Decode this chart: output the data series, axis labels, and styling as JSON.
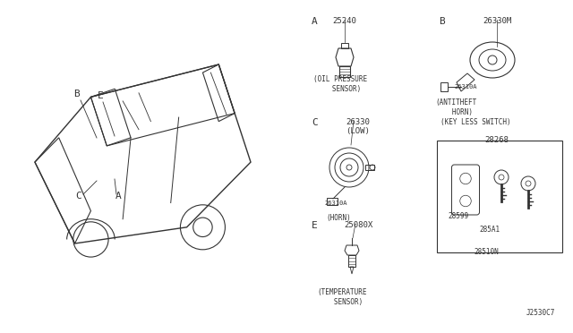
{
  "bg_color": "#ffffff",
  "line_color": "#333333",
  "title_code": "J2530C7",
  "section_A_label": "A",
  "section_B_label": "B",
  "section_C_label": "C",
  "section_E_label": "E",
  "part_25240": "25240",
  "part_26330M": "26330M",
  "part_26330": "26330\n(LOW)",
  "part_26310A_1": "26310A",
  "part_26310A_2": "26310A",
  "part_25080X": "25080X",
  "part_28268": "28268",
  "part_28599": "28599",
  "part_285A1": "285A1",
  "part_28510N": "28510N",
  "label_oil": "(OIL PRESSURE\n   SENSOR)",
  "label_antitheft": "(ANTITHEFT\n   HORN)",
  "label_keyless": "(KEY LESS SWITCH)",
  "label_horn": "(HORN)",
  "label_temp": "(TEMPERATURE\n   SENSOR)",
  "car_labels": [
    "B",
    "E",
    "C",
    "A"
  ],
  "font_size_label": 7,
  "font_size_part": 6.5,
  "font_size_section": 8
}
